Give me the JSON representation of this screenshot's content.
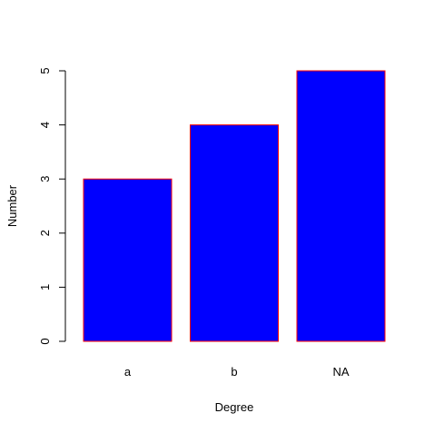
{
  "chart_data": {
    "type": "bar",
    "xlabel": "Degree",
    "ylabel": "Number",
    "categories": [
      "a",
      "b",
      "NA"
    ],
    "values": [
      3,
      4,
      5
    ],
    "color": "#0000ff",
    "edgecolor": "#ff0000",
    "ylim": [
      0,
      5
    ],
    "yticks": [
      0,
      1,
      2,
      3,
      4,
      5
    ]
  }
}
